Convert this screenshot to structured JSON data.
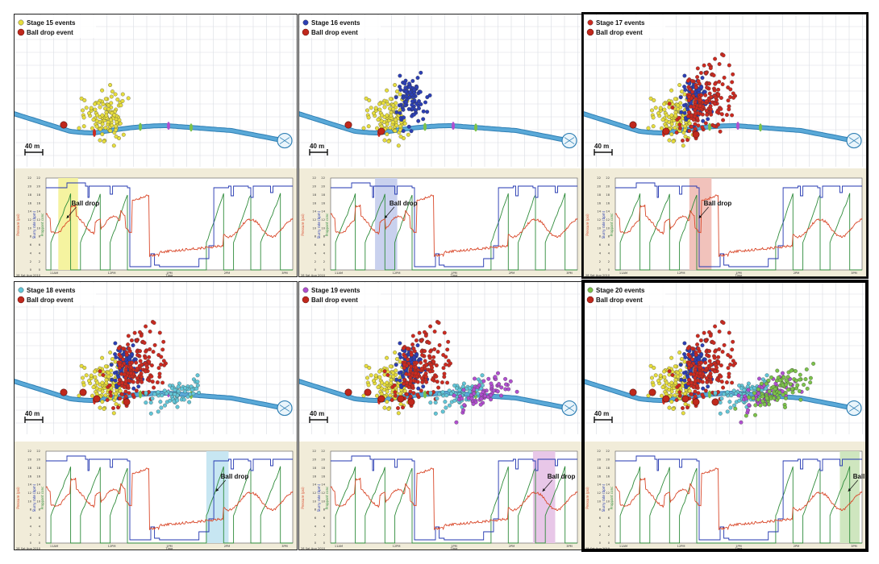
{
  "figure": {
    "map_scale_label": "40 m",
    "ball_drop_legend": "Ball drop event",
    "ball_drop_annotation": "Ball drop",
    "time_axis_label": "Time",
    "date_label": "28 Sat Aug 2010",
    "time_ticks": [
      "11AM",
      "12PM",
      "1PM",
      "2PM",
      "3PM"
    ],
    "y_left_label": "Pressure (psi)",
    "y_mid_label": "Slurry rate (bpm)",
    "y_right_label": "Proppant conc",
    "y_ticks": [
      "0",
      "2",
      "4",
      "6",
      "8",
      "10",
      "12",
      "14",
      "16",
      "18",
      "20",
      "22"
    ]
  },
  "colors": {
    "well": "#5aa9d8",
    "well_dark": "#2f7fb4",
    "ball": "#c0281c",
    "pressure": "#d9482a",
    "rate": "#2236b0",
    "conc": "#2e8b3a",
    "grid": "#d9dde3",
    "stage15": "#e6dd3e",
    "stage16": "#2c3fb4",
    "stage17": "#cc2a20",
    "stage18": "#62c6d8",
    "stage19": "#b04fcf",
    "stage20": "#7cc24a"
  },
  "chart_data": [
    {
      "type": "scatter",
      "title": "Stage 15 events",
      "stage": 15,
      "legend": [
        "Stage 15 events",
        "Ball drop event"
      ],
      "stages_shown": [
        15
      ],
      "ball_drop_window_frac": [
        0.05,
        0.13
      ],
      "band_color": "#f5f3a0"
    },
    {
      "type": "scatter",
      "title": "Stage 16 events",
      "stage": 16,
      "legend": [
        "Stage 16 events",
        "Ball drop event"
      ],
      "stages_shown": [
        15,
        16
      ],
      "ball_drop_window_frac": [
        0.18,
        0.27
      ],
      "band_color": "#c9d1ee"
    },
    {
      "type": "scatter",
      "title": "Stage 17 events",
      "stage": 17,
      "legend": [
        "Stage 17 events",
        "Ball drop event"
      ],
      "stages_shown": [
        15,
        16,
        17
      ],
      "ball_drop_window_frac": [
        0.3,
        0.39
      ],
      "band_color": "#f1c2bb"
    },
    {
      "type": "scatter",
      "title": "Stage 18 events",
      "stage": 18,
      "legend": [
        "Stage 18 events",
        "Ball drop event"
      ],
      "stages_shown": [
        15,
        16,
        17,
        18
      ],
      "ball_drop_window_frac": [
        0.65,
        0.74
      ],
      "band_color": "#c7e6f2"
    },
    {
      "type": "scatter",
      "title": "Stage 19 events",
      "stage": 19,
      "legend": [
        "Stage 19 events",
        "Ball drop event"
      ],
      "stages_shown": [
        15,
        16,
        17,
        18,
        19
      ],
      "ball_drop_window_frac": [
        0.82,
        0.91
      ],
      "band_color": "#e8c7e8"
    },
    {
      "type": "scatter",
      "title": "Stage 20 events",
      "stage": 20,
      "legend": [
        "Stage 20 events",
        "Ball drop event"
      ],
      "stages_shown": [
        15,
        16,
        17,
        18,
        19,
        20
      ],
      "ball_drop_window_frac": [
        0.91,
        0.99
      ],
      "band_color": "#cfe6bf"
    }
  ]
}
